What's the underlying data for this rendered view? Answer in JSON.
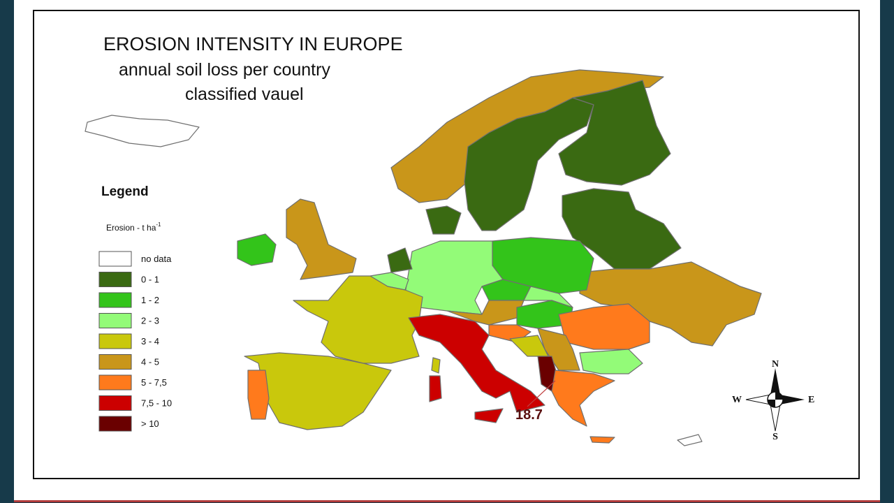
{
  "title": "EROSION INTENSITY IN EUROPE",
  "subtitle": [
    "annual soil loss per country",
    "classified vauel"
  ],
  "legend": {
    "title": "Legend",
    "unit": "Erosion - t ha",
    "unit_sup": "-1",
    "items": [
      {
        "label": "no data",
        "color": "#ffffff"
      },
      {
        "label": "0 - 1",
        "color": "#3a6a12"
      },
      {
        "label": "1 - 2",
        "color": "#33c41a"
      },
      {
        "label": "2 - 3",
        "color": "#93fb78"
      },
      {
        "label": "3 - 4",
        "color": "#c9c80c"
      },
      {
        "label": "4 - 5",
        "color": "#c9961a"
      },
      {
        "label": "5 - 7,5",
        "color": "#ff7a1c"
      },
      {
        "label": "7,5 - 10",
        "color": "#cc0000"
      },
      {
        "label": "> 10",
        "color": "#6a0000"
      }
    ]
  },
  "annotation": "18.7",
  "compass": {
    "n": "N",
    "e": "E",
    "s": "S",
    "w": "W"
  }
}
